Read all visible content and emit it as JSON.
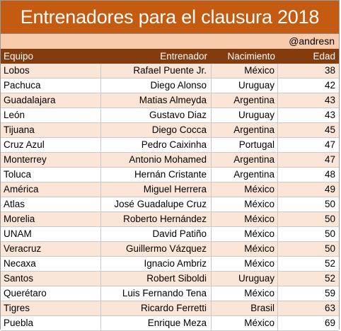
{
  "title": "Entrenadores para el clausura 2018",
  "credit": "@andresn",
  "headers": {
    "team": "Equipo",
    "coach": "Entrenador",
    "birth": "Nacimiento",
    "age": "Edad"
  },
  "colors": {
    "title_bg": "#c55a11",
    "credit_bg": "#f8cbad",
    "header_bg": "#843c0c",
    "shaded_row": "#fbe5d6"
  },
  "rows": [
    {
      "team": "Lobos",
      "coach": "Rafael Puente Jr.",
      "birth": "México",
      "age": "38"
    },
    {
      "team": "Pachuca",
      "coach": "Diego Alonso",
      "birth": "Uruguay",
      "age": "42"
    },
    {
      "team": "Guadalajara",
      "coach": "Matias Almeyda",
      "birth": "Argentina",
      "age": "43"
    },
    {
      "team": "León",
      "coach": "Gustavo Diaz",
      "birth": "Uruguay",
      "age": "43"
    },
    {
      "team": "Tijuana",
      "coach": "Diego Cocca",
      "birth": "Argentina",
      "age": "45"
    },
    {
      "team": "Cruz Azul",
      "coach": "Pedro Caixinha",
      "birth": "Portugal",
      "age": "47"
    },
    {
      "team": "Monterrey",
      "coach": "Antonio Mohamed",
      "birth": "Argentina",
      "age": "47"
    },
    {
      "team": "Toluca",
      "coach": "Hernán Cristante",
      "birth": "Argentina",
      "age": "48"
    },
    {
      "team": "América",
      "coach": "Miguel Herrera",
      "birth": "México",
      "age": "49"
    },
    {
      "team": "Atlas",
      "coach": "José Guadalupe Cruz",
      "birth": "México",
      "age": "50"
    },
    {
      "team": "Morelia",
      "coach": "Roberto Hernández",
      "birth": "México",
      "age": "50"
    },
    {
      "team": "UNAM",
      "coach": "David Patiño",
      "birth": "México",
      "age": "50"
    },
    {
      "team": "Veracruz",
      "coach": "Guillermo Vázquez",
      "birth": "México",
      "age": "50"
    },
    {
      "team": "Necaxa",
      "coach": "Ignacio Ambriz",
      "birth": "México",
      "age": "52"
    },
    {
      "team": "Santos",
      "coach": "Robert Siboldi",
      "birth": "Uruguay",
      "age": "52"
    },
    {
      "team": "Querétaro",
      "coach": "Luis Fernando Tena",
      "birth": "México",
      "age": "59"
    },
    {
      "team": "Tigres",
      "coach": "Ricardo Ferretti",
      "birth": "Brasil",
      "age": "63"
    },
    {
      "team": "Puebla",
      "coach": "Enrique Meza",
      "birth": "México",
      "age": "69"
    }
  ]
}
